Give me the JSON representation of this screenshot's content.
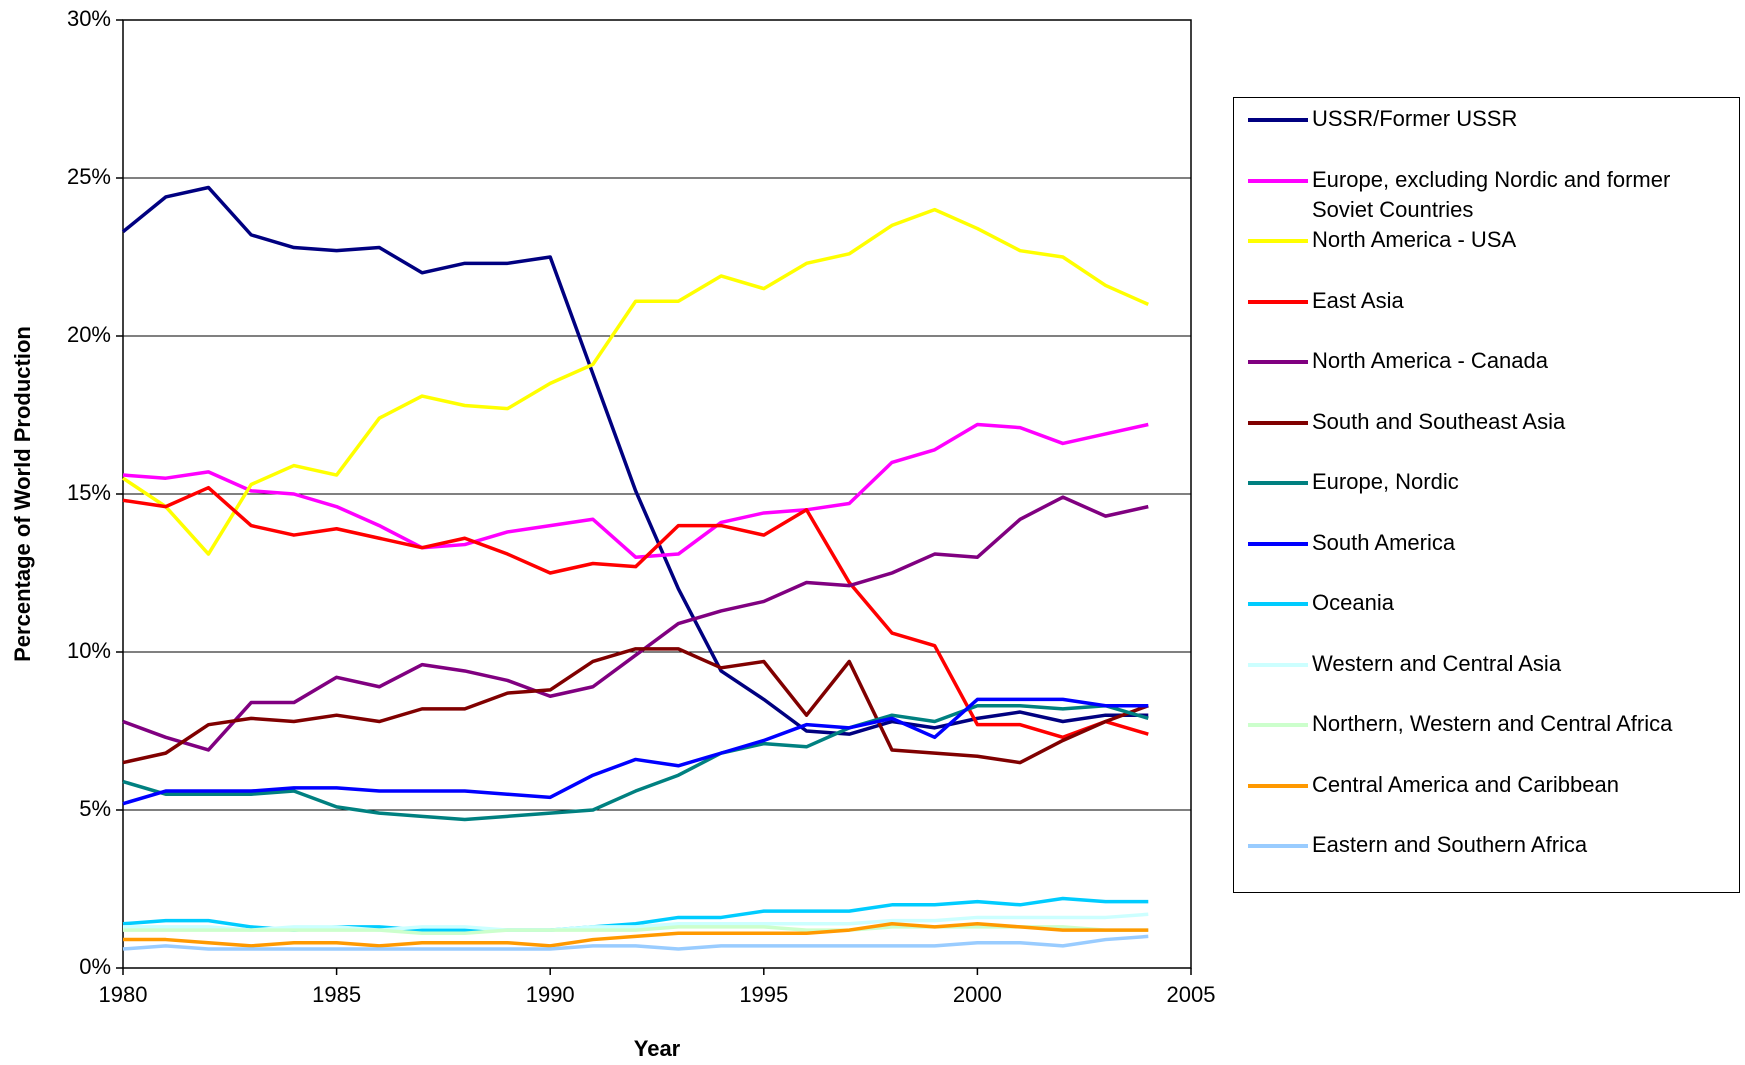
{
  "chart_data": {
    "type": "line",
    "x_label": "Year",
    "y_label": "Percentage of World Production",
    "x": [
      1980,
      1981,
      1982,
      1983,
      1984,
      1985,
      1986,
      1987,
      1988,
      1989,
      1990,
      1991,
      1992,
      1993,
      1994,
      1995,
      1996,
      1997,
      1998,
      1999,
      2000,
      2001,
      2002,
      2003,
      2004
    ],
    "xlim": [
      1980,
      2005
    ],
    "xticks": [
      1980,
      1985,
      1990,
      1995,
      2000,
      2005
    ],
    "ylim": [
      0,
      30
    ],
    "yticks": [
      {
        "value": 0,
        "label": "0%"
      },
      {
        "value": 5,
        "label": "5%"
      },
      {
        "value": 10,
        "label": "10%"
      },
      {
        "value": 15,
        "label": "15%"
      },
      {
        "value": 20,
        "label": "20%"
      },
      {
        "value": 25,
        "label": "25%"
      },
      {
        "value": 30,
        "label": "30%"
      }
    ],
    "grid": true,
    "legend": "right",
    "series": [
      {
        "name": "USSR/Former USSR",
        "color": "#000080",
        "values": [
          23.3,
          24.4,
          24.7,
          23.2,
          22.8,
          22.7,
          22.8,
          22.0,
          22.3,
          22.3,
          22.5,
          18.8,
          15.1,
          12.0,
          9.4,
          8.5,
          7.5,
          7.4,
          7.8,
          7.6,
          7.9,
          8.1,
          7.8,
          8.0,
          8.0
        ]
      },
      {
        "name": "Europe, excluding Nordic and former Soviet Countries",
        "color": "#ff00ff",
        "values": [
          15.6,
          15.5,
          15.7,
          15.1,
          15.0,
          14.6,
          14.0,
          13.3,
          13.4,
          13.8,
          14.0,
          14.2,
          13.0,
          13.1,
          14.1,
          14.4,
          14.5,
          14.7,
          16.0,
          16.4,
          17.2,
          17.1,
          16.6,
          16.9,
          17.2
        ]
      },
      {
        "name": "North America - USA",
        "color": "#ffff00",
        "values": [
          15.5,
          14.6,
          13.1,
          15.3,
          15.9,
          15.6,
          17.4,
          18.1,
          17.8,
          17.7,
          18.5,
          19.1,
          21.1,
          21.1,
          21.9,
          21.5,
          22.3,
          22.6,
          23.5,
          24.0,
          23.4,
          22.7,
          22.5,
          21.6,
          21.0
        ]
      },
      {
        "name": "East Asia",
        "color": "#ff0000",
        "values": [
          14.8,
          14.6,
          15.2,
          14.0,
          13.7,
          13.9,
          13.6,
          13.3,
          13.6,
          13.1,
          12.5,
          12.8,
          12.7,
          14.0,
          14.0,
          13.7,
          14.5,
          12.2,
          10.6,
          10.2,
          7.7,
          7.7,
          7.3,
          7.8,
          7.4
        ]
      },
      {
        "name": "North America - Canada",
        "color": "#800080",
        "values": [
          7.8,
          7.3,
          6.9,
          8.4,
          8.4,
          9.2,
          8.9,
          9.6,
          9.4,
          9.1,
          8.6,
          8.9,
          9.9,
          10.9,
          11.3,
          11.6,
          12.2,
          12.1,
          12.5,
          13.1,
          13.0,
          14.2,
          14.9,
          14.3,
          14.6
        ]
      },
      {
        "name": "South and Southeast Asia",
        "color": "#800000",
        "values": [
          6.5,
          6.8,
          7.7,
          7.9,
          7.8,
          8.0,
          7.8,
          8.2,
          8.2,
          8.7,
          8.8,
          9.7,
          10.1,
          10.1,
          9.5,
          9.7,
          8.0,
          9.7,
          6.9,
          6.8,
          6.7,
          6.5,
          7.2,
          7.8,
          8.3
        ]
      },
      {
        "name": "Europe, Nordic",
        "color": "#008080",
        "values": [
          5.9,
          5.5,
          5.5,
          5.5,
          5.6,
          5.1,
          4.9,
          4.8,
          4.7,
          4.8,
          4.9,
          5.0,
          5.6,
          6.1,
          6.8,
          7.1,
          7.0,
          7.6,
          8.0,
          7.8,
          8.3,
          8.3,
          8.2,
          8.3,
          7.9
        ]
      },
      {
        "name": "South America",
        "color": "#0000ff",
        "values": [
          5.2,
          5.6,
          5.6,
          5.6,
          5.7,
          5.7,
          5.6,
          5.6,
          5.6,
          5.5,
          5.4,
          6.1,
          6.6,
          6.4,
          6.8,
          7.2,
          7.7,
          7.6,
          7.9,
          7.3,
          8.5,
          8.5,
          8.5,
          8.3,
          8.3
        ]
      },
      {
        "name": "Oceania",
        "color": "#00ccff",
        "values": [
          1.4,
          1.5,
          1.5,
          1.3,
          1.2,
          1.3,
          1.3,
          1.2,
          1.2,
          1.2,
          1.2,
          1.3,
          1.4,
          1.6,
          1.6,
          1.8,
          1.8,
          1.8,
          2.0,
          2.0,
          2.1,
          2.0,
          2.2,
          2.1,
          2.1
        ]
      },
      {
        "name": "Western and Central Asia",
        "color": "#ccffff",
        "values": [
          1.3,
          1.3,
          1.3,
          1.2,
          1.3,
          1.3,
          1.2,
          1.3,
          1.3,
          1.2,
          1.2,
          1.3,
          1.3,
          1.4,
          1.4,
          1.4,
          1.4,
          1.4,
          1.5,
          1.5,
          1.6,
          1.6,
          1.6,
          1.6,
          1.7
        ]
      },
      {
        "name": "Northern, Western and Central Africa",
        "color": "#ccffcc",
        "values": [
          1.2,
          1.2,
          1.2,
          1.2,
          1.2,
          1.2,
          1.2,
          1.1,
          1.1,
          1.2,
          1.2,
          1.2,
          1.2,
          1.3,
          1.3,
          1.3,
          1.2,
          1.2,
          1.3,
          1.3,
          1.3,
          1.3,
          1.3,
          1.2,
          1.2
        ]
      },
      {
        "name": "Central America and Caribbean",
        "color": "#ff9900",
        "values": [
          0.9,
          0.9,
          0.8,
          0.7,
          0.8,
          0.8,
          0.7,
          0.8,
          0.8,
          0.8,
          0.7,
          0.9,
          1.0,
          1.1,
          1.1,
          1.1,
          1.1,
          1.2,
          1.4,
          1.3,
          1.4,
          1.3,
          1.2,
          1.2,
          1.2
        ]
      },
      {
        "name": "Eastern and Southern Africa",
        "color": "#99ccff",
        "values": [
          0.6,
          0.7,
          0.6,
          0.6,
          0.6,
          0.6,
          0.6,
          0.6,
          0.6,
          0.6,
          0.6,
          0.7,
          0.7,
          0.6,
          0.7,
          0.7,
          0.7,
          0.7,
          0.7,
          0.7,
          0.8,
          0.8,
          0.7,
          0.9,
          1.0
        ]
      }
    ]
  }
}
